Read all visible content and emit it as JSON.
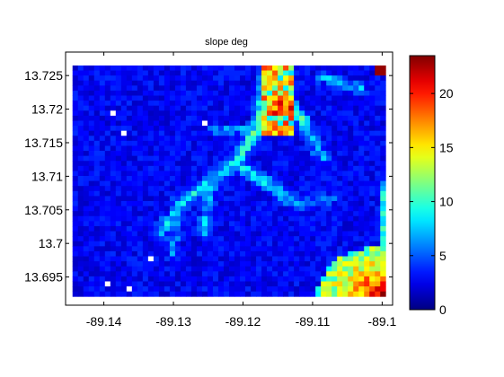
{
  "chart_data": {
    "type": "heatmap",
    "title": "slope deg",
    "xlabel": "",
    "ylabel": "",
    "xlim": [
      -89.1455,
      -89.0985
    ],
    "ylim": [
      13.6908,
      13.7285
    ],
    "x_ticks": [
      "-89.14",
      "-89.13",
      "-89.12",
      "-89.11",
      "-89.1"
    ],
    "x_tick_values": [
      -89.14,
      -89.13,
      -89.12,
      -89.11,
      -89.1
    ],
    "y_ticks": [
      "13.725",
      "13.72",
      "13.715",
      "13.71",
      "13.705",
      "13.7",
      "13.695"
    ],
    "y_tick_values": [
      13.725,
      13.72,
      13.715,
      13.71,
      13.705,
      13.7,
      13.695
    ],
    "data_extent": {
      "x": [
        -89.1445,
        -89.0995
      ],
      "y": [
        13.6921,
        13.7265
      ]
    },
    "colorbar": {
      "colormap": "jet",
      "range": [
        0,
        23.5
      ],
      "ticks": [
        "0",
        "5",
        "10",
        "15",
        "20"
      ],
      "tick_values": [
        0,
        5,
        10,
        15,
        20
      ]
    },
    "grid": false,
    "missing_value_color": "#ffffff"
  }
}
